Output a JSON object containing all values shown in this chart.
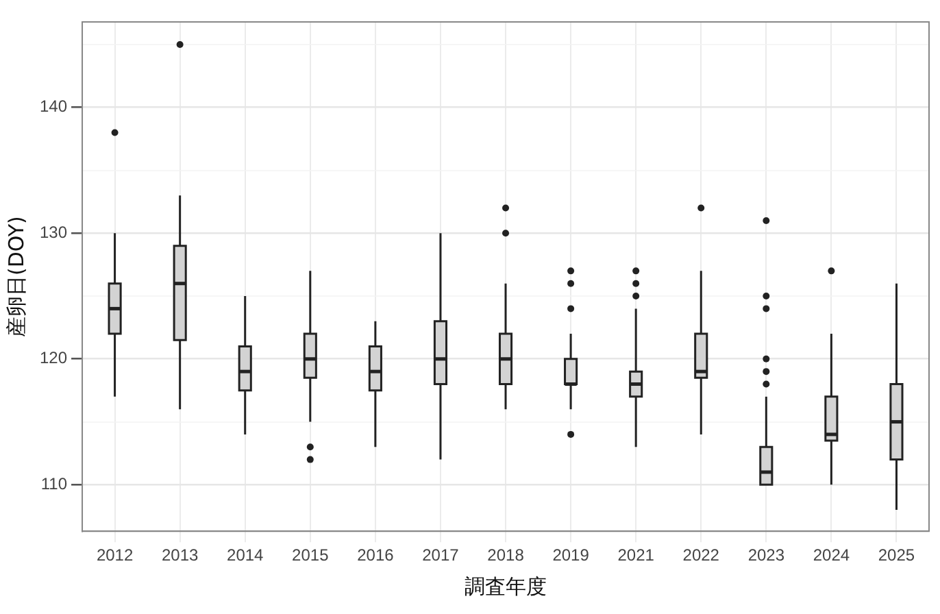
{
  "chart_data": {
    "type": "box",
    "xlabel": "調査年度",
    "ylabel": "産卵日(DOY)",
    "categories": [
      "2012",
      "2013",
      "2014",
      "2015",
      "2016",
      "2017",
      "2018",
      "2019",
      "2021",
      "2022",
      "2023",
      "2024",
      "2025"
    ],
    "ylim": [
      106.3,
      146.8
    ],
    "yticks": [
      110,
      {
        "value": 115,
        "label": null
      },
      120,
      {
        "value": 125,
        "label": null
      },
      130,
      {
        "value": 135,
        "label": null
      },
      140,
      {
        "value": 145,
        "label": null
      }
    ],
    "grid": true,
    "legend": false,
    "color": "#d3d3d3",
    "boxes": [
      {
        "low": 117,
        "q1": 122,
        "median": 124,
        "q3": 126,
        "high": 130,
        "outliers": [
          138
        ]
      },
      {
        "low": 116,
        "q1": 121.5,
        "median": 126,
        "q3": 129,
        "high": 133,
        "outliers": [
          145
        ]
      },
      {
        "low": 114,
        "q1": 117.5,
        "median": 119,
        "q3": 121,
        "high": 125
      },
      {
        "low": 115,
        "q1": 118.5,
        "median": 120,
        "q3": 122,
        "high": 127,
        "outliers": [
          112,
          113
        ]
      },
      {
        "low": 113,
        "q1": 117.5,
        "median": 119,
        "q3": 121,
        "high": 123
      },
      {
        "low": 112,
        "q1": 118,
        "median": 120,
        "q3": 123,
        "high": 130
      },
      {
        "low": 116,
        "q1": 118,
        "median": 120,
        "q3": 122,
        "high": 126,
        "outliers": [
          130,
          132
        ]
      },
      {
        "low": 116,
        "q1": 118,
        "median": 118,
        "q3": 120,
        "high": 122,
        "outliers": [
          114,
          124,
          126,
          127
        ]
      },
      {
        "low": 113,
        "q1": 117,
        "median": 118,
        "q3": 119,
        "high": 124,
        "outliers": [
          125,
          126,
          127
        ]
      },
      {
        "low": 114,
        "q1": 118.5,
        "median": 119,
        "q3": 122,
        "high": 127,
        "outliers": [
          132
        ]
      },
      {
        "low": 110,
        "q1": 110,
        "median": 111,
        "q3": 113,
        "high": 117,
        "outliers": [
          118,
          119,
          120,
          124,
          125,
          131
        ]
      },
      {
        "low": 110,
        "q1": 113.5,
        "median": 114,
        "q3": 117,
        "high": 122,
        "outliers": [
          127
        ]
      },
      {
        "low": 108,
        "q1": 112,
        "median": 115,
        "q3": 118,
        "high": 126
      }
    ]
  }
}
